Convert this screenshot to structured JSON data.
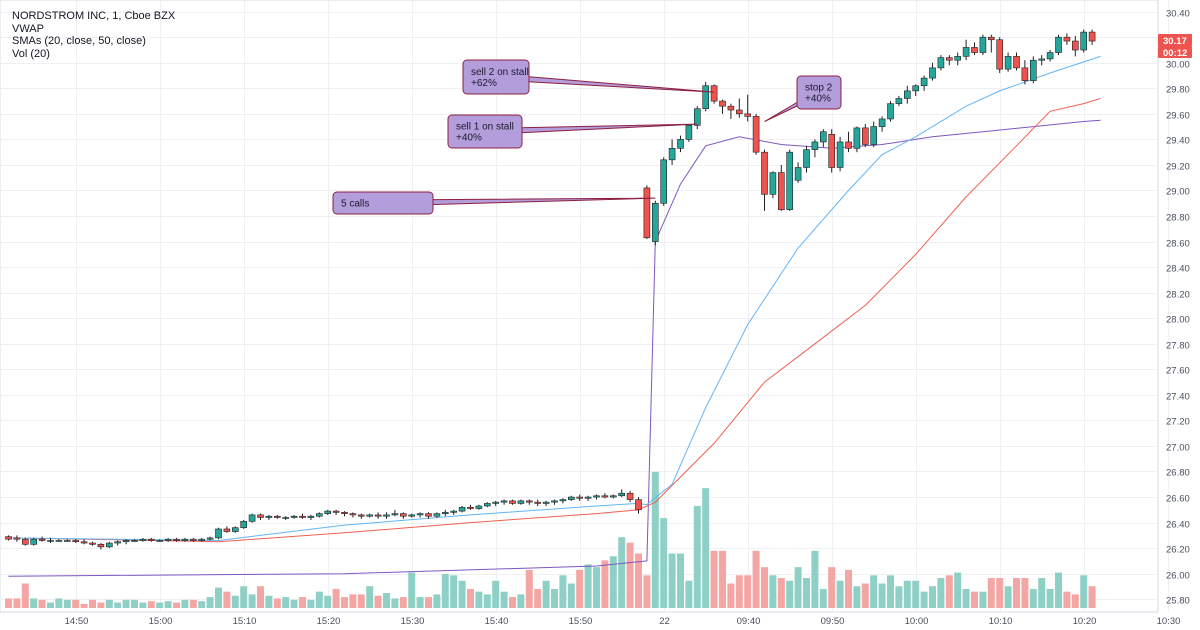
{
  "legend": {
    "symbol": "NORDSTROM INC, 1, Cboe BZX",
    "vwap": "VWAP",
    "smas": "SMAs (20, close, 50, close)",
    "vol": "Vol (20)"
  },
  "colors": {
    "up": "#26a69a",
    "down": "#ef5350",
    "vol_up": "#8fd0c6",
    "vol_down": "#f4a6a4",
    "vwap": "#7e57c2",
    "sma20": "#64b5f6",
    "sma50": "#f06050",
    "annotation_fill": "#b39ddb",
    "annotation_border": "#8e2040",
    "last_price_badge": "#ef5350"
  },
  "chart_data": {
    "type": "candlestick",
    "y_axis": {
      "ylim": [
        25.7,
        30.46
      ],
      "ticks": [
        "25.80",
        "26.00",
        "26.20",
        "26.40",
        "26.60",
        "26.80",
        "27.00",
        "27.20",
        "27.40",
        "27.60",
        "27.80",
        "28.00",
        "28.20",
        "28.40",
        "28.60",
        "28.80",
        "29.00",
        "29.20",
        "29.40",
        "29.60",
        "29.80",
        "30.00",
        "30.20",
        "30.40"
      ]
    },
    "x_axis": {
      "ticks": [
        {
          "i": 8,
          "label": "14:50"
        },
        {
          "i": 18,
          "label": "15:00"
        },
        {
          "i": 28,
          "label": "15:10"
        },
        {
          "i": 38,
          "label": "15:20"
        },
        {
          "i": 48,
          "label": "15:30"
        },
        {
          "i": 58,
          "label": "15:40"
        },
        {
          "i": 68,
          "label": "15:50"
        },
        {
          "i": 78,
          "label": "22"
        },
        {
          "i": 88,
          "label": "09:40"
        },
        {
          "i": 98,
          "label": "09:50"
        },
        {
          "i": 108,
          "label": "10:00"
        },
        {
          "i": 118,
          "label": "10:10"
        },
        {
          "i": 128,
          "label": "10:20"
        },
        {
          "i": 138,
          "label": "10:30"
        }
      ],
      "slots": 144,
      "grid": true
    },
    "last_price": {
      "value": "30.17",
      "countdown": "00:12",
      "price": 30.17
    },
    "candles": [
      [
        26.29,
        26.3,
        26.26,
        26.27
      ],
      [
        26.28,
        26.3,
        26.25,
        26.27
      ],
      [
        26.27,
        26.28,
        26.22,
        26.23
      ],
      [
        26.23,
        26.28,
        26.22,
        26.27
      ],
      [
        26.27,
        26.29,
        26.25,
        26.26
      ],
      [
        26.26,
        26.28,
        26.24,
        26.26
      ],
      [
        26.26,
        26.27,
        26.25,
        26.26
      ],
      [
        26.26,
        26.27,
        26.25,
        26.26
      ],
      [
        26.26,
        26.27,
        26.24,
        26.25
      ],
      [
        26.25,
        26.27,
        26.23,
        26.24
      ],
      [
        26.24,
        26.25,
        26.22,
        26.23
      ],
      [
        26.23,
        26.24,
        26.19,
        26.21
      ],
      [
        26.21,
        26.25,
        26.2,
        26.24
      ],
      [
        26.24,
        26.26,
        26.22,
        26.25
      ],
      [
        26.25,
        26.27,
        26.23,
        26.26
      ],
      [
        26.26,
        26.27,
        26.25,
        26.26
      ],
      [
        26.26,
        26.28,
        26.25,
        26.27
      ],
      [
        26.27,
        26.28,
        26.25,
        26.26
      ],
      [
        26.26,
        26.27,
        26.25,
        26.26
      ],
      [
        26.26,
        26.28,
        26.25,
        26.27
      ],
      [
        26.27,
        26.28,
        26.25,
        26.26
      ],
      [
        26.26,
        26.28,
        26.25,
        26.27
      ],
      [
        26.27,
        26.28,
        26.25,
        26.26
      ],
      [
        26.26,
        26.28,
        26.25,
        26.27
      ],
      [
        26.27,
        26.29,
        26.26,
        26.28
      ],
      [
        26.28,
        26.36,
        26.27,
        26.35
      ],
      [
        26.35,
        26.37,
        26.32,
        26.33
      ],
      [
        26.33,
        26.37,
        26.32,
        26.36
      ],
      [
        26.36,
        26.42,
        26.35,
        26.41
      ],
      [
        26.41,
        26.47,
        26.4,
        26.46
      ],
      [
        26.46,
        26.47,
        26.42,
        26.44
      ],
      [
        26.44,
        26.46,
        26.42,
        26.45
      ],
      [
        26.45,
        26.46,
        26.43,
        26.44
      ],
      [
        26.44,
        26.45,
        26.42,
        26.44
      ],
      [
        26.44,
        26.46,
        26.43,
        26.45
      ],
      [
        26.45,
        26.47,
        26.43,
        26.44
      ],
      [
        26.44,
        26.46,
        26.42,
        26.45
      ],
      [
        26.45,
        26.48,
        26.44,
        26.47
      ],
      [
        26.47,
        26.5,
        26.46,
        26.49
      ],
      [
        26.49,
        26.5,
        26.46,
        26.48
      ],
      [
        26.48,
        26.49,
        26.45,
        26.47
      ],
      [
        26.47,
        26.48,
        26.44,
        26.46
      ],
      [
        26.46,
        26.47,
        26.43,
        26.45
      ],
      [
        26.45,
        26.47,
        26.44,
        26.46
      ],
      [
        26.46,
        26.48,
        26.43,
        26.45
      ],
      [
        26.45,
        26.48,
        26.43,
        26.46
      ],
      [
        26.46,
        26.5,
        26.45,
        26.47
      ],
      [
        26.47,
        26.48,
        26.43,
        26.45
      ],
      [
        26.45,
        26.47,
        26.44,
        26.46
      ],
      [
        26.46,
        26.48,
        26.44,
        26.47
      ],
      [
        26.47,
        26.48,
        26.43,
        26.45
      ],
      [
        26.45,
        26.48,
        26.44,
        26.47
      ],
      [
        26.47,
        26.5,
        26.45,
        26.48
      ],
      [
        26.48,
        26.5,
        26.46,
        26.49
      ],
      [
        26.49,
        26.53,
        26.48,
        26.52
      ],
      [
        26.52,
        26.54,
        26.5,
        26.51
      ],
      [
        26.51,
        26.54,
        26.5,
        26.53
      ],
      [
        26.53,
        26.56,
        26.52,
        26.55
      ],
      [
        26.55,
        26.57,
        26.53,
        26.56
      ],
      [
        26.56,
        26.58,
        26.54,
        26.57
      ],
      [
        26.57,
        26.58,
        26.54,
        26.55
      ],
      [
        26.55,
        26.58,
        26.54,
        26.57
      ],
      [
        26.57,
        26.58,
        26.54,
        26.56
      ],
      [
        26.56,
        26.58,
        26.53,
        26.55
      ],
      [
        26.55,
        26.57,
        26.53,
        26.56
      ],
      [
        26.56,
        26.58,
        26.54,
        26.57
      ],
      [
        26.57,
        26.59,
        26.55,
        26.58
      ],
      [
        26.58,
        26.61,
        26.57,
        26.6
      ],
      [
        26.6,
        26.62,
        26.57,
        26.59
      ],
      [
        26.59,
        26.61,
        26.57,
        26.6
      ],
      [
        26.6,
        26.62,
        26.58,
        26.61
      ],
      [
        26.61,
        26.63,
        26.59,
        26.6
      ],
      [
        26.6,
        26.62,
        26.59,
        26.61
      ],
      [
        26.61,
        26.66,
        26.6,
        26.63
      ],
      [
        26.63,
        26.65,
        26.56,
        26.58
      ],
      [
        26.58,
        26.6,
        26.47,
        26.5
      ],
      [
        29.02,
        29.04,
        28.62,
        28.63
      ],
      [
        28.6,
        28.92,
        28.57,
        28.9
      ],
      [
        28.9,
        29.26,
        28.88,
        29.24
      ],
      [
        29.24,
        29.4,
        29.2,
        29.33
      ],
      [
        29.33,
        29.43,
        29.3,
        29.4
      ],
      [
        29.4,
        29.52,
        29.38,
        29.51
      ],
      [
        29.51,
        29.66,
        29.48,
        29.64
      ],
      [
        29.64,
        29.85,
        29.62,
        29.82
      ],
      [
        29.82,
        29.83,
        29.68,
        29.7
      ],
      [
        29.7,
        29.71,
        29.6,
        29.66
      ],
      [
        29.66,
        29.68,
        29.56,
        29.63
      ],
      [
        29.63,
        29.72,
        29.57,
        29.6
      ],
      [
        29.6,
        29.75,
        29.54,
        29.58
      ],
      [
        29.58,
        29.6,
        29.28,
        29.3
      ],
      [
        29.3,
        29.32,
        28.84,
        28.97
      ],
      [
        28.97,
        29.15,
        28.94,
        29.14
      ],
      [
        29.14,
        29.2,
        28.84,
        28.85
      ],
      [
        28.85,
        29.32,
        28.84,
        29.3
      ],
      [
        29.08,
        29.22,
        29.06,
        29.18
      ],
      [
        29.18,
        29.35,
        29.14,
        29.32
      ],
      [
        29.32,
        29.4,
        29.26,
        29.38
      ],
      [
        29.38,
        29.48,
        29.34,
        29.46
      ],
      [
        29.44,
        29.48,
        29.14,
        29.18
      ],
      [
        29.18,
        29.42,
        29.15,
        29.38
      ],
      [
        29.38,
        29.46,
        29.3,
        29.33
      ],
      [
        29.33,
        29.5,
        29.3,
        29.49
      ],
      [
        29.49,
        29.52,
        29.34,
        29.36
      ],
      [
        29.36,
        29.54,
        29.34,
        29.5
      ],
      [
        29.5,
        29.58,
        29.46,
        29.56
      ],
      [
        29.56,
        29.7,
        29.54,
        29.68
      ],
      [
        29.68,
        29.74,
        29.66,
        29.72
      ],
      [
        29.72,
        29.82,
        29.68,
        29.78
      ],
      [
        29.78,
        29.83,
        29.74,
        29.82
      ],
      [
        29.82,
        29.9,
        29.78,
        29.88
      ],
      [
        29.88,
        30.0,
        29.86,
        29.96
      ],
      [
        29.96,
        30.06,
        29.94,
        30.04
      ],
      [
        30.04,
        30.06,
        29.98,
        30.02
      ],
      [
        30.02,
        30.08,
        29.98,
        30.05
      ],
      [
        30.05,
        30.18,
        30.02,
        30.12
      ],
      [
        30.12,
        30.16,
        30.06,
        30.08
      ],
      [
        30.08,
        30.22,
        30.06,
        30.2
      ],
      [
        30.2,
        30.22,
        30.08,
        30.18
      ],
      [
        30.18,
        30.2,
        29.92,
        29.95
      ],
      [
        29.95,
        30.08,
        29.93,
        30.05
      ],
      [
        30.05,
        30.08,
        29.94,
        29.96
      ],
      [
        29.96,
        30.02,
        29.83,
        29.86
      ],
      [
        29.86,
        30.05,
        29.84,
        30.02
      ],
      [
        30.02,
        30.06,
        29.98,
        30.03
      ],
      [
        30.03,
        30.1,
        30.01,
        30.08
      ],
      [
        30.08,
        30.22,
        30.06,
        30.2
      ],
      [
        30.2,
        30.23,
        30.14,
        30.17
      ],
      [
        30.17,
        30.21,
        30.05,
        30.1
      ],
      [
        30.1,
        30.26,
        30.08,
        30.24
      ],
      [
        30.24,
        30.26,
        30.14,
        30.17
      ]
    ],
    "volume_scale": 470,
    "volume": [
      7,
      7,
      18,
      7,
      6,
      4,
      7,
      6,
      6,
      3,
      6,
      4,
      6,
      4,
      6,
      6,
      4,
      5,
      4,
      5,
      4,
      6,
      6,
      5,
      8,
      15,
      12,
      9,
      16,
      10,
      16,
      9,
      7,
      8,
      6,
      8,
      6,
      12,
      9,
      14,
      8,
      10,
      10,
      16,
      9,
      11,
      7,
      8,
      26,
      8,
      8,
      10,
      25,
      24,
      20,
      14,
      12,
      10,
      20,
      12,
      8,
      10,
      28,
      14,
      20,
      14,
      24,
      18,
      28,
      32,
      30,
      35,
      38,
      52,
      48,
      40,
      24,
      100,
      66,
      40,
      40,
      20,
      75,
      88,
      42,
      42,
      18,
      24,
      24,
      42,
      30,
      24,
      22,
      20,
      30,
      22,
      42,
      14,
      30,
      20,
      28,
      16,
      18,
      24,
      18,
      24,
      16,
      20,
      20,
      12,
      16,
      22,
      24,
      26,
      14,
      12,
      12,
      22,
      22,
      16,
      22,
      22,
      14,
      22,
      14,
      26,
      12,
      10,
      24,
      16,
      14,
      20,
      20,
      18
    ],
    "vwap": [
      [
        0,
        25.98
      ],
      [
        40,
        26.0
      ],
      [
        70,
        26.06
      ],
      [
        76,
        26.1
      ],
      [
        77,
        28.6
      ],
      [
        80,
        29.05
      ],
      [
        83,
        29.35
      ],
      [
        87,
        29.42
      ],
      [
        92,
        29.36
      ],
      [
        98,
        29.33
      ],
      [
        104,
        29.36
      ],
      [
        110,
        29.42
      ],
      [
        116,
        29.46
      ],
      [
        122,
        29.5
      ],
      [
        128,
        29.54
      ],
      [
        130,
        29.55
      ]
    ],
    "sma20": [
      [
        0,
        26.28
      ],
      [
        25,
        26.26
      ],
      [
        40,
        26.38
      ],
      [
        55,
        26.46
      ],
      [
        70,
        26.53
      ],
      [
        75,
        26.55
      ],
      [
        76,
        26.54
      ],
      [
        79,
        26.7
      ],
      [
        83,
        27.3
      ],
      [
        88,
        27.95
      ],
      [
        94,
        28.55
      ],
      [
        100,
        29.0
      ],
      [
        104,
        29.28
      ],
      [
        108,
        29.42
      ],
      [
        114,
        29.66
      ],
      [
        118,
        29.78
      ],
      [
        124,
        29.92
      ],
      [
        130,
        30.05
      ]
    ],
    "sma50": [
      [
        0,
        26.28
      ],
      [
        25,
        26.25
      ],
      [
        40,
        26.32
      ],
      [
        55,
        26.4
      ],
      [
        70,
        26.47
      ],
      [
        75,
        26.5
      ],
      [
        77,
        26.56
      ],
      [
        84,
        27.02
      ],
      [
        90,
        27.5
      ],
      [
        96,
        27.8
      ],
      [
        102,
        28.1
      ],
      [
        108,
        28.5
      ],
      [
        114,
        28.95
      ],
      [
        120,
        29.35
      ],
      [
        124,
        29.62
      ],
      [
        128,
        29.68
      ],
      [
        130,
        29.72
      ]
    ],
    "annotations": [
      {
        "text": [
          "5 calls"
        ],
        "target_i": 77,
        "target_price": 28.94
      },
      {
        "text": [
          "sell 1 on stall",
          "+40%"
        ],
        "target_i": 82,
        "target_price": 29.52
      },
      {
        "text": [
          "sell 2 on stall",
          "+62%"
        ],
        "target_i": 84,
        "target_price": 29.77
      },
      {
        "text": [
          "stop 2",
          "+40%"
        ],
        "target_i": 90,
        "target_price": 29.54
      }
    ]
  }
}
